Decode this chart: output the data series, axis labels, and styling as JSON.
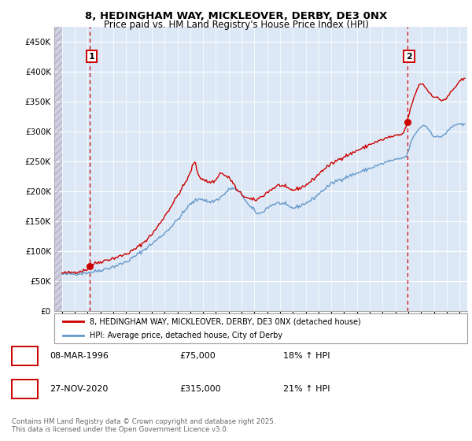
{
  "title1": "8, HEDINGHAM WAY, MICKLEOVER, DERBY, DE3 0NX",
  "title2": "Price paid vs. HM Land Registry's House Price Index (HPI)",
  "legend_line1": "8, HEDINGHAM WAY, MICKLEOVER, DERBY, DE3 0NX (detached house)",
  "legend_line2": "HPI: Average price, detached house, City of Derby",
  "footnote": "Contains HM Land Registry data © Crown copyright and database right 2025.\nThis data is licensed under the Open Government Licence v3.0.",
  "marker1_label": "1",
  "marker1_date": "08-MAR-1996",
  "marker1_price": "£75,000",
  "marker1_hpi": "18% ↑ HPI",
  "marker2_label": "2",
  "marker2_date": "27-NOV-2020",
  "marker2_price": "£315,000",
  "marker2_hpi": "21% ↑ HPI",
  "red_color": "#cc0000",
  "blue_color": "#6699cc",
  "bg_plot_color": "#dce8f5",
  "hatch_fill_color": "#d0d0e0",
  "hatch_line_color": "#b0b0c8",
  "grid_color": "#ffffff",
  "ylim": [
    0,
    475000
  ],
  "yticks": [
    0,
    50000,
    100000,
    150000,
    200000,
    250000,
    300000,
    350000,
    400000,
    450000
  ],
  "marker1_x": 1996.17,
  "marker1_y": 75000,
  "marker2_x": 2020.92,
  "marker2_y": 315000,
  "xlim_left": 1993.4,
  "xlim_right": 2025.6
}
